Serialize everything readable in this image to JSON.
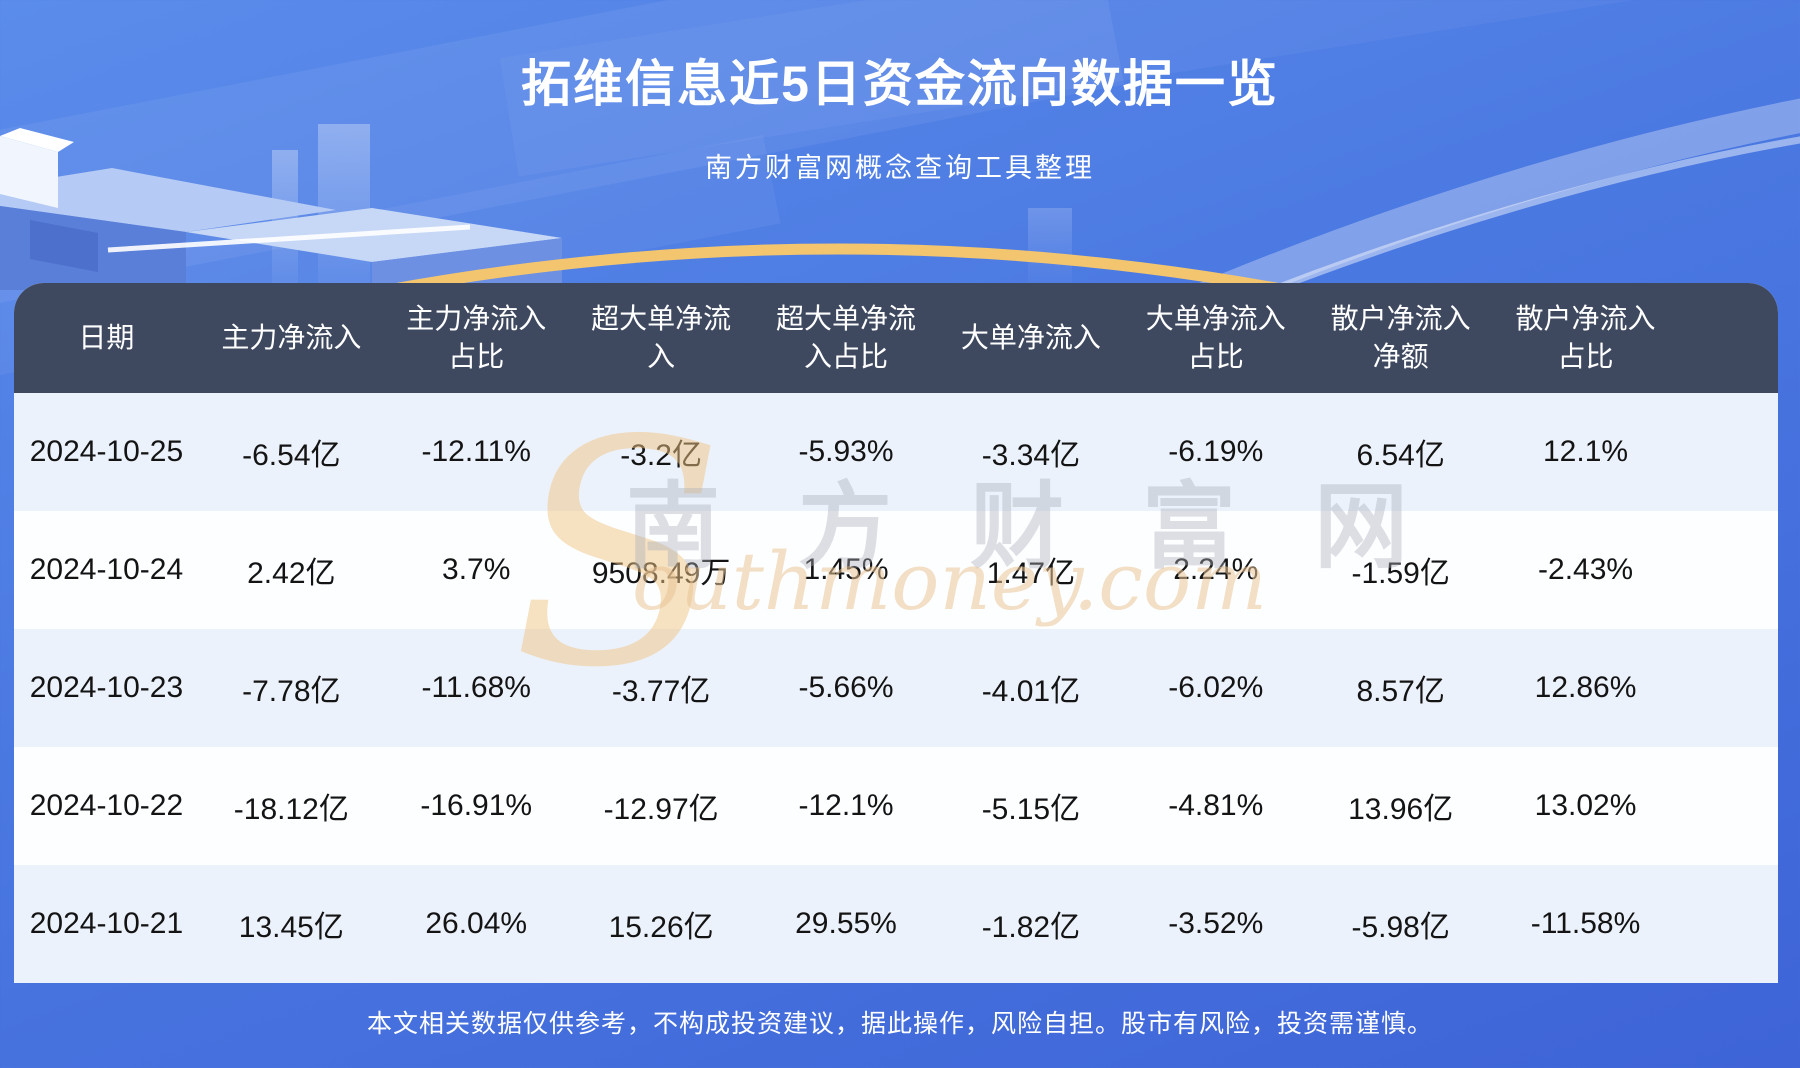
{
  "title": "拓维信息近5日资金流向数据一览",
  "subtitle": "南方财富网概念查询工具整理",
  "watermark": {
    "brand_initial": "S",
    "brand_cn": "南方财富网",
    "brand_en": "outhmoney.com"
  },
  "table": {
    "columns": [
      "日期",
      "主力净流入",
      "主力净流入占比",
      "超大单净流入",
      "超大单净流入占比",
      "大单净流入",
      "大单净流入占比",
      "散户净流入净额",
      "散户净流入占比"
    ],
    "rows": [
      [
        "2024-10-25",
        "-6.54亿",
        "-12.11%",
        "-3.2亿",
        "-5.93%",
        "-3.34亿",
        "-6.19%",
        "6.54亿",
        "12.1%"
      ],
      [
        "2024-10-24",
        "2.42亿",
        "3.7%",
        "9508.49万",
        "1.45%",
        "1.47亿",
        "2.24%",
        "-1.59亿",
        "-2.43%"
      ],
      [
        "2024-10-23",
        "-7.78亿",
        "-11.68%",
        "-3.77亿",
        "-5.66%",
        "-4.01亿",
        "-6.02%",
        "8.57亿",
        "12.86%"
      ],
      [
        "2024-10-22",
        "-18.12亿",
        "-16.91%",
        "-12.97亿",
        "-12.1%",
        "-5.15亿",
        "-4.81%",
        "13.96亿",
        "13.02%"
      ],
      [
        "2024-10-21",
        "13.45亿",
        "26.04%",
        "15.26亿",
        "29.55%",
        "-1.82亿",
        "-3.52%",
        "-5.98亿",
        "-11.58%"
      ]
    ]
  },
  "footer": {
    "disclaimer": "本文相关数据仅供参考，不构成投资建议，据此操作，风险自担。股市有风险，投资需谨慎。"
  },
  "colors": {
    "header_bg": "#3e4960",
    "row_alt_bg": "#ecf2fb",
    "row_bg": "#fdfeff",
    "accent_gold": "#f2c56e",
    "page_blue_top": "#5b8ceb",
    "page_blue_bottom": "#3e64d7"
  }
}
